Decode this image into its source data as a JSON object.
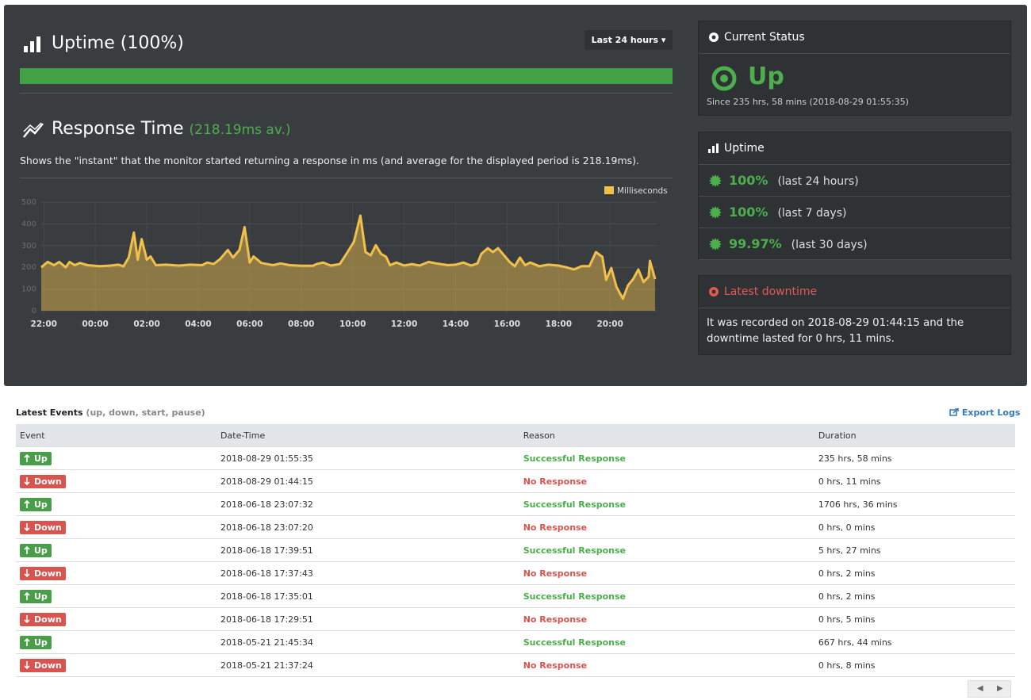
{
  "header": {
    "title": "Uptime (100%)",
    "period_button": "Last 24 hours"
  },
  "response": {
    "title": "Response Time",
    "average": "(218.19ms av.)",
    "description": "Shows the \"instant\" that the monitor started returning a response in ms (and average for the displayed period is 218.19ms)."
  },
  "chart_data": {
    "type": "area",
    "x": [
      -0.1,
      0.15,
      0.4,
      0.6,
      0.85,
      1.0,
      1.2,
      1.4,
      1.7,
      2.15,
      2.6,
      2.9,
      3.1,
      3.3,
      3.5,
      3.65,
      3.8,
      4.0,
      4.15,
      4.35,
      4.75,
      5.25,
      5.7,
      6.15,
      6.35,
      6.6,
      6.85,
      7.15,
      7.35,
      7.6,
      7.8,
      8.0,
      8.15,
      8.45,
      8.9,
      9.2,
      9.55,
      10.0,
      10.45,
      10.6,
      10.85,
      11.15,
      11.5,
      11.8,
      12.05,
      12.3,
      12.5,
      12.7,
      12.9,
      13.1,
      13.3,
      13.45,
      13.7,
      14.0,
      14.3,
      14.6,
      14.95,
      15.25,
      15.7,
      16.0,
      16.3,
      16.6,
      16.85,
      17.0,
      17.25,
      17.45,
      17.65,
      17.85,
      18.1,
      18.3,
      18.5,
      18.7,
      18.9,
      19.25,
      19.6,
      20.0,
      20.3,
      20.6,
      20.9,
      21.2,
      21.45,
      21.7,
      21.85,
      22.05,
      22.25,
      22.5,
      22.7,
      22.9,
      23.1,
      23.3,
      23.5,
      23.55,
      23.75
    ],
    "series": [
      {
        "name": "Milliseconds",
        "color": "#f0c04a",
        "values": [
          200,
          225,
          210,
          225,
          200,
          225,
          210,
          220,
          210,
          205,
          208,
          212,
          205,
          245,
          360,
          235,
          330,
          235,
          250,
          210,
          212,
          208,
          212,
          210,
          222,
          215,
          238,
          280,
          245,
          280,
          385,
          222,
          250,
          220,
          210,
          218,
          210,
          207,
          207,
          215,
          222,
          208,
          215,
          270,
          318,
          438,
          270,
          255,
          302,
          262,
          248,
          210,
          222,
          208,
          215,
          208,
          225,
          218,
          210,
          212,
          222,
          208,
          218,
          262,
          288,
          270,
          288,
          260,
          225,
          205,
          245,
          210,
          222,
          205,
          212,
          208,
          200,
          190,
          205,
          205,
          270,
          248,
          142,
          197,
          110,
          55,
          117,
          146,
          190,
          132,
          157,
          230,
          146
        ]
      }
    ],
    "xlim": [
      -0.1,
      23.75
    ],
    "xticks": [
      {
        "value": 0,
        "label": "22:00"
      },
      {
        "value": 2,
        "label": "00:00"
      },
      {
        "value": 4,
        "label": "02:00"
      },
      {
        "value": 6,
        "label": "04:00"
      },
      {
        "value": 8,
        "label": "06:00"
      },
      {
        "value": 10,
        "label": "08:00"
      },
      {
        "value": 12,
        "label": "10:00"
      },
      {
        "value": 14,
        "label": "12:00"
      },
      {
        "value": 16,
        "label": "14:00"
      },
      {
        "value": 18,
        "label": "16:00"
      },
      {
        "value": 20,
        "label": "18:00"
      },
      {
        "value": 22,
        "label": "20:00"
      }
    ],
    "ylim": [
      0,
      500
    ],
    "yticks": [
      0,
      100,
      200,
      300,
      400,
      500
    ],
    "grid": true,
    "legend": "top-right"
  },
  "current_status": {
    "title": "Current Status",
    "status": "Up",
    "since": "Since 235 hrs, 58 mins (2018-08-29 01:55:35)"
  },
  "uptime": {
    "title": "Uptime",
    "rows": [
      {
        "value": "100%",
        "period": "(last 24 hours)"
      },
      {
        "value": "100%",
        "period": "(last 7 days)"
      },
      {
        "value": "99.97%",
        "period": "(last 30 days)"
      }
    ]
  },
  "latest_downtime": {
    "title": "Latest downtime",
    "text": "It was recorded on 2018-08-29 01:44:15 and the downtime lasted for 0 hrs, 11 mins."
  },
  "events": {
    "title": "Latest Events",
    "subtitle": "(up, down, start, pause)",
    "export": "Export Logs",
    "columns": [
      "Event",
      "Date-Time",
      "Reason",
      "Duration"
    ],
    "rows": [
      [
        "Up",
        "2018-08-29 01:55:35",
        "Successful Response",
        "235 hrs, 58 mins"
      ],
      [
        "Down",
        "2018-08-29 01:44:15",
        "No Response",
        "0 hrs, 11 mins"
      ],
      [
        "Up",
        "2018-06-18 23:07:32",
        "Successful Response",
        "1706 hrs, 36 mins"
      ],
      [
        "Down",
        "2018-06-18 23:07:20",
        "No Response",
        "0 hrs, 0 mins"
      ],
      [
        "Up",
        "2018-06-18 17:39:51",
        "Successful Response",
        "5 hrs, 27 mins"
      ],
      [
        "Down",
        "2018-06-18 17:37:43",
        "No Response",
        "0 hrs, 2 mins"
      ],
      [
        "Up",
        "2018-06-18 17:35:01",
        "Successful Response",
        "0 hrs, 2 mins"
      ],
      [
        "Down",
        "2018-06-18 17:29:51",
        "No Response",
        "0 hrs, 5 mins"
      ],
      [
        "Up",
        "2018-05-21 21:45:34",
        "Successful Response",
        "667 hrs, 44 mins"
      ],
      [
        "Down",
        "2018-05-21 21:37:24",
        "No Response",
        "0 hrs, 8 mins"
      ]
    ]
  }
}
